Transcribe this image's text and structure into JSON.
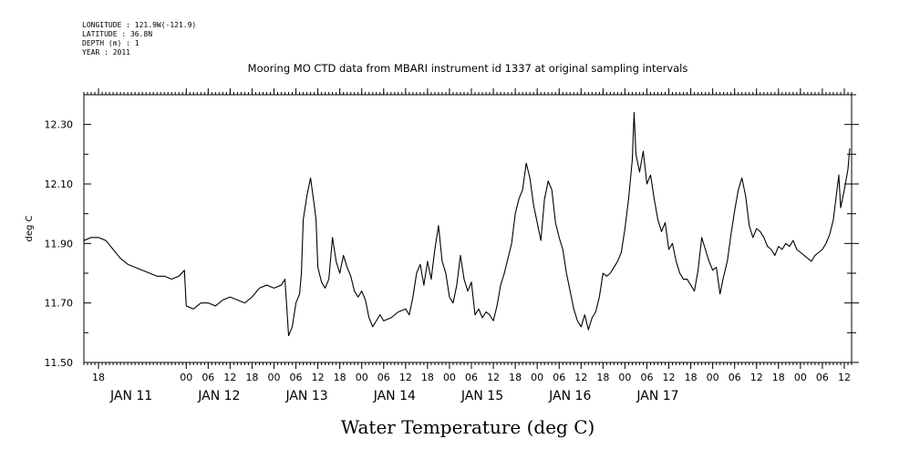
{
  "header": {
    "lines": [
      "LONGITUDE : 121.9W(-121.9)",
      "LATITUDE : 36.8N",
      "DEPTH (m) : 1",
      "YEAR : 2011"
    ]
  },
  "chart_data": {
    "type": "line",
    "title": "Mooring MO CTD data from MBARI instrument id 1337 at original sampling intervals",
    "xlabel": "Water Temperature (deg C)",
    "ylabel": "deg C",
    "ylim": [
      11.5,
      12.4
    ],
    "xlim": [
      -28,
      182
    ],
    "yticks": [
      11.5,
      11.7,
      11.9,
      12.1,
      12.3
    ],
    "ytick_labels": [
      "11.50",
      "11.70",
      "11.90",
      "12.10",
      "12.30"
    ],
    "x_hour_ticks": [
      {
        "h": -24,
        "label": "18"
      },
      {
        "h": 0,
        "label": "00"
      },
      {
        "h": 6,
        "label": "06"
      },
      {
        "h": 12,
        "label": "12"
      },
      {
        "h": 18,
        "label": "18"
      },
      {
        "h": 24,
        "label": "00"
      },
      {
        "h": 30,
        "label": "06"
      },
      {
        "h": 36,
        "label": "12"
      },
      {
        "h": 42,
        "label": "18"
      },
      {
        "h": 48,
        "label": "00"
      },
      {
        "h": 54,
        "label": "06"
      },
      {
        "h": 60,
        "label": "12"
      },
      {
        "h": 66,
        "label": "18"
      },
      {
        "h": 72,
        "label": "00"
      },
      {
        "h": 78,
        "label": "06"
      },
      {
        "h": 84,
        "label": "12"
      },
      {
        "h": 90,
        "label": "18"
      },
      {
        "h": 96,
        "label": "00"
      },
      {
        "h": 102,
        "label": "06"
      },
      {
        "h": 108,
        "label": "12"
      },
      {
        "h": 114,
        "label": "18"
      },
      {
        "h": 120,
        "label": "00"
      },
      {
        "h": 126,
        "label": "06"
      },
      {
        "h": 132,
        "label": "12"
      },
      {
        "h": 138,
        "label": "18"
      },
      {
        "h": 144,
        "label": "00"
      },
      {
        "h": 150,
        "label": "06"
      },
      {
        "h": 156,
        "label": "12"
      },
      {
        "h": 162,
        "label": "18"
      },
      {
        "h": 168,
        "label": "00"
      },
      {
        "h": 174,
        "label": "06"
      },
      {
        "h": 180,
        "label": "12"
      }
    ],
    "x_day_labels": [
      {
        "h": -15,
        "label": "JAN 11"
      },
      {
        "h": 9,
        "label": "JAN 12"
      },
      {
        "h": 33,
        "label": "JAN 13"
      },
      {
        "h": 57,
        "label": "JAN 14"
      },
      {
        "h": 81,
        "label": "JAN 15"
      },
      {
        "h": 105,
        "label": "JAN 16"
      },
      {
        "h": 129,
        "label": "JAN 17"
      }
    ],
    "grid": false,
    "series": [
      {
        "color": "#000000",
        "points": [
          [
            -28.0,
            11.91
          ],
          [
            -26.0,
            11.92
          ],
          [
            -24.0,
            11.92
          ],
          [
            -22.0,
            11.91
          ],
          [
            -20.0,
            11.88
          ],
          [
            -18.0,
            11.85
          ],
          [
            -16.0,
            11.83
          ],
          [
            -14.0,
            11.82
          ],
          [
            -12.0,
            11.81
          ],
          [
            -10.0,
            11.8
          ],
          [
            -8.0,
            11.79
          ],
          [
            -6.0,
            11.79
          ],
          [
            -4.0,
            11.78
          ],
          [
            -2.0,
            11.79
          ],
          [
            -0.5,
            11.81
          ],
          [
            0.0,
            11.69
          ],
          [
            2.0,
            11.68
          ],
          [
            4.0,
            11.7
          ],
          [
            6.0,
            11.7
          ],
          [
            8.0,
            11.69
          ],
          [
            10.0,
            11.71
          ],
          [
            12.0,
            11.72
          ],
          [
            14.0,
            11.71
          ],
          [
            16.0,
            11.7
          ],
          [
            18.0,
            11.72
          ],
          [
            20.0,
            11.75
          ],
          [
            22.0,
            11.76
          ],
          [
            24.0,
            11.75
          ],
          [
            26.0,
            11.76
          ],
          [
            27.0,
            11.78
          ],
          [
            28.0,
            11.59
          ],
          [
            29.0,
            11.62
          ],
          [
            30.0,
            11.7
          ],
          [
            31.0,
            11.73
          ],
          [
            31.5,
            11.8
          ],
          [
            32.0,
            11.98
          ],
          [
            33.0,
            12.06
          ],
          [
            34.0,
            12.12
          ],
          [
            35.0,
            12.03
          ],
          [
            35.5,
            11.98
          ],
          [
            36.0,
            11.82
          ],
          [
            37.0,
            11.77
          ],
          [
            38.0,
            11.75
          ],
          [
            39.0,
            11.78
          ],
          [
            40.0,
            11.92
          ],
          [
            41.0,
            11.84
          ],
          [
            42.0,
            11.8
          ],
          [
            43.0,
            11.86
          ],
          [
            44.0,
            11.82
          ],
          [
            45.0,
            11.79
          ],
          [
            46.0,
            11.74
          ],
          [
            47.0,
            11.72
          ],
          [
            48.0,
            11.74
          ],
          [
            49.0,
            11.71
          ],
          [
            50.0,
            11.65
          ],
          [
            51.0,
            11.62
          ],
          [
            52.0,
            11.64
          ],
          [
            53.0,
            11.66
          ],
          [
            54.0,
            11.64
          ],
          [
            56.0,
            11.65
          ],
          [
            58.0,
            11.67
          ],
          [
            60.0,
            11.68
          ],
          [
            61.0,
            11.66
          ],
          [
            62.0,
            11.72
          ],
          [
            63.0,
            11.8
          ],
          [
            64.0,
            11.83
          ],
          [
            65.0,
            11.76
          ],
          [
            66.0,
            11.84
          ],
          [
            67.0,
            11.78
          ],
          [
            68.0,
            11.88
          ],
          [
            69.0,
            11.96
          ],
          [
            70.0,
            11.84
          ],
          [
            71.0,
            11.8
          ],
          [
            72.0,
            11.72
          ],
          [
            73.0,
            11.7
          ],
          [
            74.0,
            11.76
          ],
          [
            75.0,
            11.86
          ],
          [
            76.0,
            11.78
          ],
          [
            77.0,
            11.74
          ],
          [
            78.0,
            11.77
          ],
          [
            79.0,
            11.66
          ],
          [
            80.0,
            11.68
          ],
          [
            81.0,
            11.65
          ],
          [
            82.0,
            11.67
          ],
          [
            83.0,
            11.66
          ],
          [
            84.0,
            11.64
          ],
          [
            85.0,
            11.69
          ],
          [
            86.0,
            11.76
          ],
          [
            87.0,
            11.8
          ],
          [
            88.0,
            11.85
          ],
          [
            89.0,
            11.9
          ],
          [
            90.0,
            12.0
          ],
          [
            91.0,
            12.05
          ],
          [
            92.0,
            12.08
          ],
          [
            93.0,
            12.17
          ],
          [
            94.0,
            12.12
          ],
          [
            95.0,
            12.03
          ],
          [
            96.0,
            11.97
          ],
          [
            97.0,
            11.91
          ],
          [
            98.0,
            12.05
          ],
          [
            99.0,
            12.11
          ],
          [
            100.0,
            12.08
          ],
          [
            101.0,
            11.97
          ],
          [
            102.0,
            11.92
          ],
          [
            103.0,
            11.88
          ],
          [
            104.0,
            11.8
          ],
          [
            105.0,
            11.74
          ],
          [
            106.0,
            11.68
          ],
          [
            107.0,
            11.64
          ],
          [
            108.0,
            11.62
          ],
          [
            109.0,
            11.66
          ],
          [
            110.0,
            11.61
          ],
          [
            111.0,
            11.65
          ],
          [
            112.0,
            11.67
          ],
          [
            113.0,
            11.72
          ],
          [
            114.0,
            11.8
          ],
          [
            115.0,
            11.79
          ],
          [
            116.0,
            11.8
          ],
          [
            117.0,
            11.82
          ],
          [
            118.0,
            11.84
          ],
          [
            119.0,
            11.87
          ],
          [
            120.0,
            11.95
          ],
          [
            121.0,
            12.05
          ],
          [
            122.0,
            12.18
          ],
          [
            122.5,
            12.34
          ],
          [
            123.0,
            12.2
          ],
          [
            124.0,
            12.14
          ],
          [
            125.0,
            12.21
          ],
          [
            126.0,
            12.1
          ],
          [
            127.0,
            12.13
          ],
          [
            128.0,
            12.05
          ],
          [
            129.0,
            11.98
          ],
          [
            130.0,
            11.94
          ],
          [
            131.0,
            11.97
          ],
          [
            132.0,
            11.88
          ],
          [
            133.0,
            11.9
          ],
          [
            134.0,
            11.84
          ],
          [
            135.0,
            11.8
          ],
          [
            136.0,
            11.78
          ],
          [
            137.0,
            11.78
          ],
          [
            138.0,
            11.76
          ],
          [
            139.0,
            11.74
          ],
          [
            140.0,
            11.81
          ],
          [
            141.0,
            11.92
          ],
          [
            142.0,
            11.88
          ],
          [
            143.0,
            11.84
          ],
          [
            144.0,
            11.81
          ],
          [
            145.0,
            11.82
          ],
          [
            146.0,
            11.73
          ],
          [
            147.0,
            11.79
          ],
          [
            148.0,
            11.84
          ],
          [
            149.0,
            11.93
          ],
          [
            150.0,
            12.01
          ],
          [
            151.0,
            12.08
          ],
          [
            152.0,
            12.12
          ],
          [
            153.0,
            12.06
          ],
          [
            154.0,
            11.96
          ],
          [
            155.0,
            11.92
          ],
          [
            156.0,
            11.95
          ],
          [
            157.0,
            11.94
          ],
          [
            158.0,
            11.92
          ],
          [
            159.0,
            11.89
          ],
          [
            160.0,
            11.88
          ],
          [
            161.0,
            11.86
          ],
          [
            162.0,
            11.89
          ],
          [
            163.0,
            11.88
          ],
          [
            164.0,
            11.9
          ],
          [
            165.0,
            11.89
          ],
          [
            166.0,
            11.91
          ],
          [
            167.0,
            11.88
          ],
          [
            168.0,
            11.87
          ],
          [
            169.0,
            11.86
          ],
          [
            170.0,
            11.85
          ],
          [
            171.0,
            11.84
          ],
          [
            172.0,
            11.86
          ],
          [
            173.0,
            11.87
          ],
          [
            174.0,
            11.88
          ],
          [
            175.0,
            11.9
          ],
          [
            176.0,
            11.93
          ],
          [
            177.0,
            11.98
          ],
          [
            178.0,
            12.08
          ],
          [
            178.5,
            12.13
          ],
          [
            179.0,
            12.02
          ],
          [
            180.0,
            12.08
          ],
          [
            181.0,
            12.15
          ],
          [
            181.5,
            12.22
          ]
        ]
      }
    ]
  }
}
